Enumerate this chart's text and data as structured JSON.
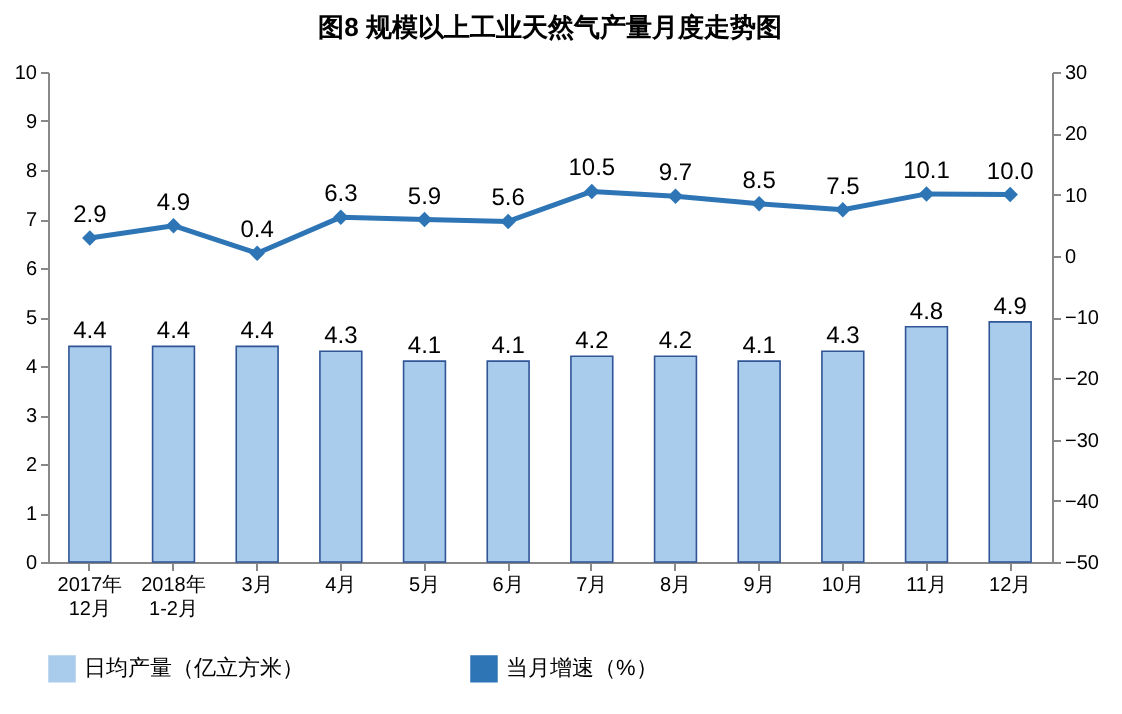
{
  "chart_data": {
    "type": "bar",
    "title": "图8  规模以上工业天然气产量月度走势图",
    "categories": [
      "2017年\n12月",
      "2018年\n1-2月",
      "3月",
      "4月",
      "5月",
      "6月",
      "7月",
      "8月",
      "9月",
      "10月",
      "11月",
      "12月"
    ],
    "series": [
      {
        "name": "日均产量（亿立方米）",
        "color": "#a9cbec",
        "values": [
          4.4,
          4.4,
          4.4,
          4.3,
          4.1,
          4.1,
          4.2,
          4.2,
          4.1,
          4.3,
          4.8,
          4.9
        ],
        "value_labels": [
          "4.4",
          "4.4",
          "4.4",
          "4.3",
          "4.1",
          "4.1",
          "4.2",
          "4.2",
          "4.1",
          "4.3",
          "4.8",
          "4.9"
        ]
      },
      {
        "name": "当月增速（%）",
        "type": "line",
        "axis": "y2",
        "color": "#2e75b6",
        "values": [
          2.9,
          4.9,
          0.4,
          6.3,
          5.9,
          5.6,
          10.5,
          9.7,
          8.5,
          7.5,
          10.1,
          10.0
        ],
        "value_labels": [
          "2.9",
          "4.9",
          "0.4",
          "6.3",
          "5.9",
          "5.6",
          "10.5",
          "9.7",
          "8.5",
          "7.5",
          "10.1",
          "10.0"
        ]
      }
    ],
    "ylim": [
      0,
      10
    ],
    "yticks": [
      0,
      1,
      2,
      3,
      4,
      5,
      6,
      7,
      8,
      9,
      10
    ],
    "y2lim": [
      -50,
      30
    ],
    "y2ticks": [
      -50,
      -40,
      -30,
      -20,
      -10,
      0,
      10,
      20,
      30
    ],
    "marker": "diamond",
    "legend": "bottom",
    "grid": false
  }
}
